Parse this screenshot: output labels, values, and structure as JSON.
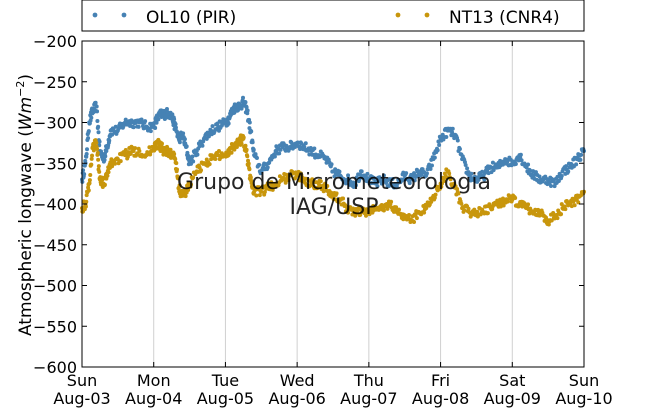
{
  "chart_data": {
    "type": "scatter",
    "ylabel_text": "Atmospheric longwave (",
    "ylabel_unit": "Wm",
    "ylabel_exp": "−2",
    "ylabel_close": ")",
    "ylim": [
      -600,
      -200
    ],
    "y_ticks": [
      -200,
      -250,
      -300,
      -350,
      -400,
      -450,
      -500,
      -550,
      -600
    ],
    "xlim": [
      0,
      7
    ],
    "x_ticks": [
      {
        "pos": 0,
        "day": "Sun",
        "date": "Aug-03"
      },
      {
        "pos": 1,
        "day": "Mon",
        "date": "Aug-04"
      },
      {
        "pos": 2,
        "day": "Tue",
        "date": "Aug-05"
      },
      {
        "pos": 3,
        "day": "Wed",
        "date": "Aug-06"
      },
      {
        "pos": 4,
        "day": "Thu",
        "date": "Aug-07"
      },
      {
        "pos": 5,
        "day": "Fri",
        "date": "Aug-08"
      },
      {
        "pos": 6,
        "day": "Sat",
        "date": "Aug-09"
      },
      {
        "pos": 7,
        "day": "Sun",
        "date": "Aug-10"
      }
    ],
    "grid": "vertical",
    "legend_placement": "top",
    "watermark": [
      "Grupo de Micrometeorologia",
      "IAG/USP"
    ],
    "series": [
      {
        "name": "OL10 (PIR)",
        "color": "#4682b4",
        "x": [
          0.0,
          0.05,
          0.1,
          0.15,
          0.2,
          0.25,
          0.3,
          0.35,
          0.4,
          0.5,
          0.6,
          0.7,
          0.8,
          0.9,
          1.0,
          1.05,
          1.1,
          1.15,
          1.2,
          1.25,
          1.3,
          1.35,
          1.4,
          1.45,
          1.5,
          1.6,
          1.7,
          1.8,
          1.9,
          2.0,
          2.05,
          2.1,
          2.15,
          2.2,
          2.25,
          2.3,
          2.35,
          2.4,
          2.5,
          2.6,
          2.7,
          2.8,
          2.9,
          3.0,
          3.1,
          3.2,
          3.3,
          3.4,
          3.5,
          3.6,
          3.7,
          3.8,
          3.9,
          4.0,
          4.1,
          4.2,
          4.3,
          4.4,
          4.5,
          4.6,
          4.7,
          4.8,
          4.9,
          5.0,
          5.1,
          5.2,
          5.3,
          5.4,
          5.5,
          5.6,
          5.7,
          5.8,
          5.9,
          6.0,
          6.1,
          6.2,
          6.3,
          6.4,
          6.5,
          6.6,
          6.7,
          6.8,
          6.9,
          7.0
        ],
        "y": [
          -370,
          -350,
          -300,
          -285,
          -280,
          -335,
          -345,
          -330,
          -310,
          -310,
          -300,
          -300,
          -300,
          -305,
          -305,
          -295,
          -290,
          -290,
          -288,
          -292,
          -305,
          -320,
          -315,
          -330,
          -350,
          -335,
          -320,
          -310,
          -305,
          -300,
          -295,
          -285,
          -280,
          -280,
          -275,
          -285,
          -310,
          -340,
          -360,
          -350,
          -335,
          -330,
          -330,
          -325,
          -330,
          -335,
          -340,
          -345,
          -360,
          -365,
          -370,
          -375,
          -360,
          -370,
          -375,
          -370,
          -375,
          -375,
          -365,
          -370,
          -360,
          -365,
          -345,
          -320,
          -310,
          -315,
          -345,
          -365,
          -370,
          -365,
          -355,
          -355,
          -345,
          -350,
          -340,
          -355,
          -365,
          -370,
          -370,
          -375,
          -360,
          -355,
          -345,
          -335
        ]
      },
      {
        "name": "NT13 (CNR4)",
        "color": "#c8960c",
        "x": [
          0.0,
          0.05,
          0.1,
          0.15,
          0.2,
          0.25,
          0.3,
          0.35,
          0.4,
          0.5,
          0.6,
          0.7,
          0.8,
          0.9,
          1.0,
          1.05,
          1.1,
          1.15,
          1.2,
          1.25,
          1.3,
          1.35,
          1.4,
          1.45,
          1.5,
          1.6,
          1.7,
          1.8,
          1.9,
          2.0,
          2.05,
          2.1,
          2.15,
          2.2,
          2.25,
          2.3,
          2.35,
          2.4,
          2.5,
          2.6,
          2.7,
          2.8,
          2.9,
          3.0,
          3.1,
          3.2,
          3.3,
          3.4,
          3.5,
          3.6,
          3.7,
          3.8,
          3.9,
          4.0,
          4.1,
          4.2,
          4.3,
          4.4,
          4.5,
          4.6,
          4.7,
          4.8,
          4.9,
          5.0,
          5.1,
          5.2,
          5.3,
          5.4,
          5.5,
          5.6,
          5.7,
          5.8,
          5.9,
          6.0,
          6.1,
          6.2,
          6.3,
          6.4,
          6.5,
          6.6,
          6.7,
          6.8,
          6.9,
          7.0
        ],
        "y": [
          -405,
          -400,
          -375,
          -330,
          -325,
          -370,
          -375,
          -365,
          -350,
          -345,
          -340,
          -335,
          -335,
          -340,
          -330,
          -325,
          -330,
          -335,
          -335,
          -340,
          -345,
          -380,
          -390,
          -385,
          -375,
          -360,
          -350,
          -345,
          -340,
          -340,
          -335,
          -330,
          -325,
          -322,
          -320,
          -340,
          -370,
          -385,
          -385,
          -380,
          -375,
          -370,
          -365,
          -365,
          -370,
          -375,
          -375,
          -380,
          -390,
          -395,
          -405,
          -410,
          -410,
          -410,
          -405,
          -405,
          -400,
          -410,
          -415,
          -420,
          -410,
          -405,
          -390,
          -375,
          -360,
          -380,
          -405,
          -410,
          -410,
          -410,
          -405,
          -400,
          -395,
          -395,
          -400,
          -405,
          -410,
          -410,
          -420,
          -415,
          -405,
          -400,
          -395,
          -385
        ]
      }
    ]
  }
}
